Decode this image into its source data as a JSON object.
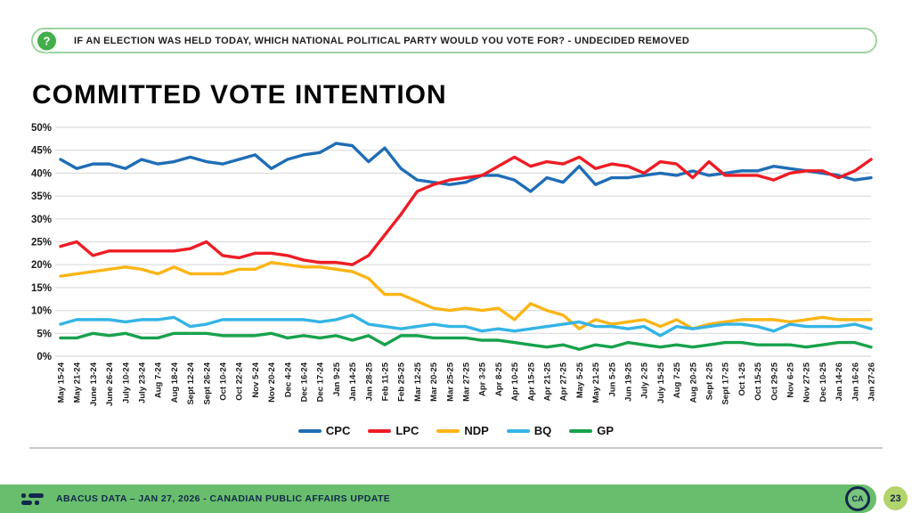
{
  "header": {
    "question": "IF AN ELECTION WAS HELD TODAY, WHICH NATIONAL POLITICAL PARTY WOULD YOU VOTE FOR?   - UNDECIDED REMOVED",
    "icon": "question-mark-icon",
    "icon_glyph": "?"
  },
  "title": "COMMITTED VOTE INTENTION",
  "chart_data": {
    "type": "line",
    "title": "COMMITTED VOTE INTENTION",
    "ylabel": "",
    "xlabel": "",
    "ylim": [
      0,
      50
    ],
    "ytick_step": 5,
    "ytick_format": "percent",
    "grid": true,
    "legend_position": "bottom",
    "categories": [
      "May 15-24",
      "May 21-24",
      "June 13-24",
      "June 26-24",
      "July 10-24",
      "July 23-24",
      "Aug 7-24",
      "Aug 18-24",
      "Sept 12-24",
      "Sept 26-24",
      "Oct 10-24",
      "Oct 22-24",
      "Nov 5-24",
      "Nov 20-24",
      "Dec 4-24",
      "Dec 16-24",
      "Dec 17-24",
      "Jan 9-25",
      "Jan 14-25",
      "Jan 28-25",
      "Feb 11-25",
      "Feb 25-25",
      "Mar 12-25",
      "Mar 20-25",
      "Mar 25-25",
      "Mar 27-25",
      "Apr 3-25",
      "Apr 8-25",
      "Apr 10-25",
      "Apr 15-25",
      "Apr 21-25",
      "Apr 27-25",
      "May 5-25",
      "May 21-25",
      "Jun 5-25",
      "Jun 19-25",
      "July 2-25",
      "July 15-25",
      "Aug 7-25",
      "Aug 20-25",
      "Sept 2-25",
      "Sept 17-25",
      "Oct 1-25",
      "Oct 15-25",
      "Oct 29-25",
      "Nov 6-25",
      "Nov 27-25",
      "Dec 10-25",
      "Jan 14-26",
      "Jan 16-26",
      "Jan 27-26"
    ],
    "series": [
      {
        "name": "CPC",
        "color": "#1f6db6",
        "values": [
          43,
          41,
          42,
          42,
          41,
          43,
          42,
          42.5,
          43.5,
          42.5,
          42,
          43,
          44,
          41,
          43,
          44,
          44.5,
          46.5,
          46,
          42.5,
          45.5,
          41,
          38.5,
          38,
          37.5,
          38,
          39.5,
          39.5,
          38.5,
          36,
          39,
          38,
          41.5,
          37.5,
          39,
          39,
          39.5,
          40,
          39.5,
          40.5,
          39.5,
          40,
          40.5,
          40.5,
          41.5,
          41,
          40.5,
          40,
          39.5,
          38.5,
          39
        ]
      },
      {
        "name": "LPC",
        "color": "#ee1c25",
        "values": [
          24,
          25,
          22,
          23,
          23,
          23,
          23,
          23,
          23.5,
          25,
          22,
          21.5,
          22.5,
          22.5,
          22,
          21,
          20.5,
          20.5,
          20,
          22,
          26.5,
          31,
          36,
          37.5,
          38.5,
          39,
          39.5,
          41.5,
          43.5,
          41.5,
          42.5,
          42,
          43.5,
          41,
          42,
          41.5,
          40,
          42.5,
          42,
          39,
          42.5,
          39.5,
          39.5,
          39.5,
          38.5,
          40,
          40.5,
          40.5,
          39,
          40.5,
          43
        ]
      },
      {
        "name": "NDP",
        "color": "#fbb515",
        "values": [
          17.5,
          18,
          18.5,
          19,
          19.5,
          19,
          18,
          19.5,
          18,
          18,
          18,
          19,
          19,
          20.5,
          20,
          19.5,
          19.5,
          19,
          18.5,
          17,
          13.5,
          13.5,
          12,
          10.5,
          10,
          10.5,
          10,
          10.5,
          8,
          11.5,
          10,
          9,
          6,
          8,
          7,
          7.5,
          8,
          6.5,
          8,
          6,
          7,
          7.5,
          8,
          8,
          8,
          7.5,
          8,
          8.5,
          8,
          8,
          8
        ]
      },
      {
        "name": "BQ",
        "color": "#35b4e5",
        "values": [
          7,
          8,
          8,
          8,
          7.5,
          8,
          8,
          8.5,
          6.5,
          7,
          8,
          8,
          8,
          8,
          8,
          8,
          7.5,
          8,
          9,
          7,
          6.5,
          6,
          6.5,
          7,
          6.5,
          6.5,
          5.5,
          6,
          5.5,
          6,
          6.5,
          7,
          7.5,
          6.5,
          6.5,
          6,
          6.5,
          4.5,
          6.5,
          6,
          6.5,
          7,
          7,
          6.5,
          5.5,
          7,
          6.5,
          6.5,
          6.5,
          7,
          6
        ]
      },
      {
        "name": "GP",
        "color": "#17a24d",
        "values": [
          4,
          4,
          5,
          4.5,
          5,
          4,
          4,
          5,
          5,
          5,
          4.5,
          4.5,
          4.5,
          5,
          4,
          4.5,
          4,
          4.5,
          3.5,
          4.5,
          2.5,
          4.5,
          4.5,
          4,
          4,
          4,
          3.5,
          3.5,
          3,
          2.5,
          2,
          2.5,
          1.5,
          2.5,
          2,
          3,
          2.5,
          2,
          2.5,
          2,
          2.5,
          3,
          3,
          2.5,
          2.5,
          2.5,
          2,
          2.5,
          3,
          3,
          2
        ]
      }
    ]
  },
  "footer": {
    "text": "ABACUS DATA  – JAN 27, 2026 - CANADIAN PUBLIC AFFAIRS UPDATE",
    "logo_badge": "CA",
    "page_number": "23"
  },
  "colors": {
    "footer_green": "#68be6c",
    "page_badge_green": "#b3d36b",
    "question_icon_green": "#43ae4c",
    "pill_border_green": "#9ed4a0",
    "navy": "#13284c",
    "gridline": "#dcdcdc"
  }
}
